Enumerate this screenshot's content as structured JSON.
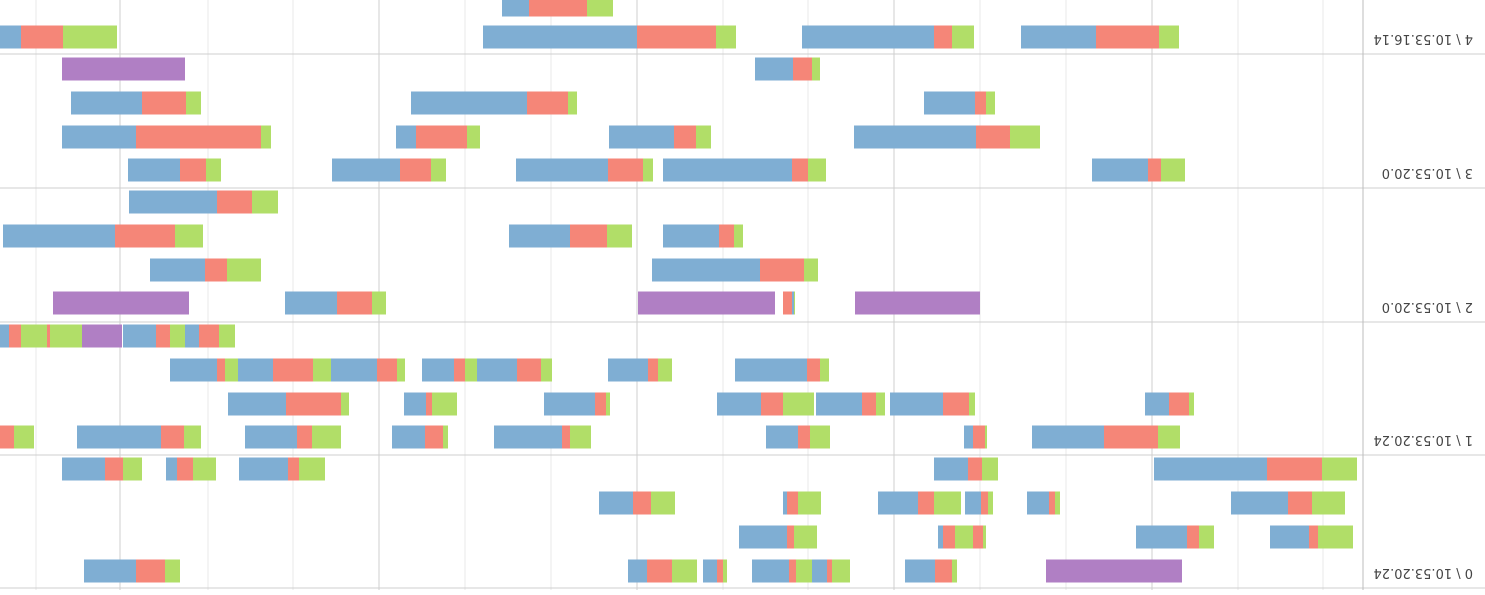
{
  "chart_data": {
    "type": "timeline",
    "orientation_note": "",
    "x_domain": [
      0,
      1360
    ],
    "colors": {
      "a": "#7faed3",
      "b": "#f58678",
      "c": "#b1de68",
      "end": "#b07fc4",
      "end2": "#e8e26a"
    },
    "lanes": [
      {
        "label": "0 \\ 10.53.20.24",
        "rows": [
          [
            [
              3,
              38,
              93,
              206
            ],
            [
              362,
              378,
              392,
              426
            ],
            [
              1035,
              1061,
              1072,
              1121
            ],
            [
              1144,
              1167,
              1183,
              1194
            ],
            [
              1218,
              1237,
              1255,
              1298
            ]
          ],
          [
            [
              15,
              48,
              72,
              129
            ],
            [
              300,
              305,
              311,
              333
            ],
            [
              367,
              372,
              379,
              395
            ],
            [
              399,
              426,
              442,
              482
            ],
            [
              539,
              562,
              573,
              577
            ],
            [
              685,
              709,
              727,
              761
            ]
          ],
          [
            [
              7,
              42,
              51,
              90
            ],
            [
              146,
              161,
              173,
              224
            ],
            [
              374,
              377,
              392,
              400
            ],
            [
              387,
              405,
              417,
              422
            ],
            [
              543,
              566,
              573,
              621
            ]
          ],
          [
            [
              178,
              233,
              264,
              312,
              314
            ],
            [
              403,
              408,
              425,
              455
            ],
            [
              510,
              528,
              533,
              560
            ],
            [
              548,
              564,
              571,
              608
            ],
            [
              633,
              637,
              643,
              657
            ],
            [
              663,
              688,
              713,
              732
            ],
            [
              1180,
              1195,
              1224,
              1276
            ]
          ]
        ]
      },
      {
        "label": "1 \\ 10.53.20.24",
        "rows": [
          [
            [
              1125,
              1139,
              1153,
              1196
            ],
            [
              1132,
              1141,
              1161,
              1205
            ],
            [
              1175,
              1190,
              1204,
              1237
            ],
            [
              1238,
              1243,
              1264,
              1311,
              1312
            ],
            [
              1278,
              1284,
              1302,
              1367
            ],
            [
              1282,
              1310,
              1345,
              1385
            ],
            [
              1313,
              1339,
              1351,
              1360
            ]
          ],
          [
            [
              1021,
              1047,
              1087,
              1139
            ],
            [
              955,
              963,
              983,
              1029
            ],
            [
              882,
              895,
              906,
              938
            ],
            [
              808,
              819,
              843,
              883
            ],
            [
              688,
              702,
              712,
              752
            ],
            [
              531,
              540,
              553,
              625
            ],
            [
              1122,
              1135,
              1143,
              1190
            ]
          ],
          [
            [
              166,
              171,
              191,
              215
            ],
            [
              385,
              391,
              417,
              470
            ],
            [
              475,
              484,
              498,
              544
            ],
            [
              546,
              577,
              599,
              643
            ],
            [
              750,
              754,
              765,
              816
            ],
            [
              1029,
              1080,
              1096,
              1132
            ],
            [
              903,
              928,
              934,
              956
            ],
            [
              1011,
              1019,
              1074,
              1097
            ]
          ],
          [
            [
              1326,
              1346,
              1396,
              1476
            ],
            [
              1159,
              1176,
              1199,
              1283
            ],
            [
              1019,
              1048,
              1063,
              1115
            ],
            [
              912,
              917,
              935,
              968
            ],
            [
              769,
              790,
              798,
              866
            ],
            [
              530,
              550,
              562,
              594
            ],
            [
              373,
              375,
              387,
              396
            ],
            [
              180,
              202,
              256,
              328
            ]
          ]
        ]
      },
      {
        "label": "2 \\ 10.53.20.0",
        "rows": [
          [
            [
              1082,
              1108,
              1143,
              1231
            ]
          ],
          [
            [
              1157,
              1185,
              1245,
              1357
            ],
            [
              728,
              753,
              790,
              851
            ],
            [
              617,
              626,
              641,
              697
            ]
          ],
          [
            [
              1099,
              1133,
              1155,
              1210
            ],
            [
              575,
              595,
              632,
              708
            ],
            [
              542,
              556,
              600,
              664
            ]
          ],
          [
            [
              1171,
              1194,
              1239,
              1305,
              1307
            ],
            [
              974,
              988,
              1023,
              1075
            ],
            [
              565,
              577,
              568,
              566
            ],
            [
              585,
              588,
              628,
              719,
              722
            ],
            [
              380,
              386,
              410,
              504,
              505
            ]
          ]
        ]
      },
      {
        "label": "3 \\ 10.53.20.0",
        "rows": [
          [
            [
              1175,
              1200,
              1214,
              1296,
              1298
            ],
            [
              540,
              548,
              567,
              605
            ]
          ],
          [
            [
              1159,
              1174,
              1218,
              1289
            ],
            [
              837,
              847,
              883,
              949
            ],
            [
              783,
              792,
              833,
              908
            ],
            [
              365,
              374,
              385,
              436
            ]
          ],
          [
            [
              1089,
              1099,
              1224,
              1298
            ],
            [
              880,
              893,
              944,
              964
            ],
            [
              649,
              664,
              686,
              751
            ],
            [
              320,
              350,
              384,
              506
            ]
          ],
          [
            [
              1139,
              1154,
              1180,
              1232
            ],
            [
              914,
              929,
              960,
              1028
            ],
            [
              707,
              717,
              752,
              844
            ],
            [
              534,
              552,
              568,
              697
            ],
            [
              175,
              199,
              212,
              268
            ]
          ]
        ]
      },
      {
        "label": "4 \\ 10.53.16.14",
        "rows": [
          [
            [
              747,
              773,
              831,
              858
            ]
          ],
          [
            [
              1243,
              1297,
              1339,
              1473
            ],
            [
              624,
              644,
              723,
              877
            ],
            [
              386,
              408,
              426,
              558
            ],
            [
              181,
              201,
              264,
              339
            ]
          ]
        ]
      }
    ]
  }
}
